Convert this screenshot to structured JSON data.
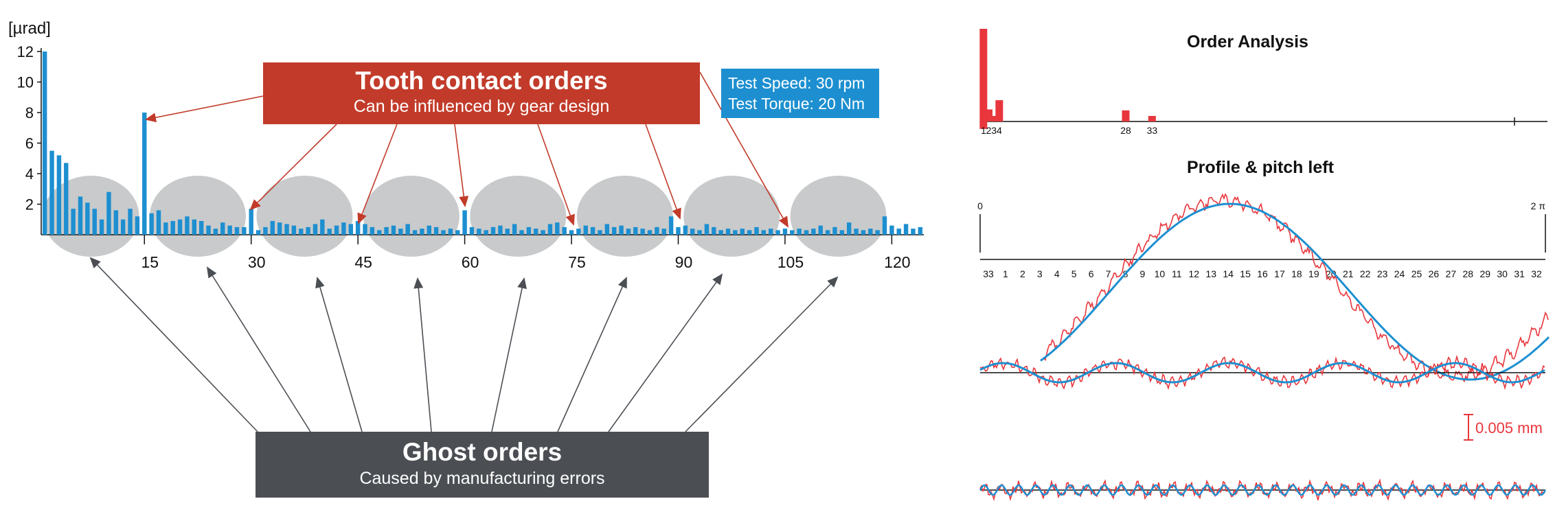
{
  "left_chart": {
    "chart_data": {
      "type": "bar",
      "ylabel": "[µrad]",
      "ylim": [
        0,
        12
      ],
      "yticks": [
        2,
        4,
        6,
        8,
        10,
        12
      ],
      "xticks": [
        15,
        30,
        45,
        60,
        75,
        90,
        105,
        120
      ],
      "x_range": [
        0,
        124
      ],
      "highlight_orders": [
        1,
        15,
        30,
        45,
        60,
        75,
        90,
        105
      ],
      "values": [
        12.0,
        5.5,
        5.2,
        4.7,
        1.7,
        2.5,
        2.1,
        1.7,
        1.0,
        2.8,
        1.6,
        1.0,
        1.7,
        1.2,
        8.0,
        1.4,
        1.6,
        0.8,
        0.9,
        1.0,
        1.2,
        1.0,
        0.9,
        0.6,
        0.4,
        0.8,
        0.6,
        0.5,
        0.5,
        1.7,
        0.3,
        0.5,
        0.9,
        0.8,
        0.7,
        0.6,
        0.4,
        0.5,
        0.7,
        1.0,
        0.4,
        0.6,
        0.8,
        0.7,
        0.9,
        0.7,
        0.5,
        0.3,
        0.5,
        0.6,
        0.4,
        0.7,
        0.3,
        0.4,
        0.6,
        0.5,
        0.3,
        0.4,
        0.3,
        1.6,
        0.5,
        0.4,
        0.3,
        0.5,
        0.6,
        0.4,
        0.7,
        0.3,
        0.5,
        0.4,
        0.3,
        0.7,
        0.8,
        0.5,
        0.3,
        0.4,
        0.6,
        0.5,
        0.3,
        0.7,
        0.5,
        0.6,
        0.4,
        0.5,
        0.4,
        0.3,
        0.5,
        0.4,
        1.2,
        0.5,
        0.6,
        0.4,
        0.3,
        0.7,
        0.5,
        0.3,
        0.4,
        0.3,
        0.4,
        0.3,
        0.5,
        0.3,
        0.4,
        0.3,
        0.4,
        0.3,
        0.4,
        0.3,
        0.4,
        0.6,
        0.3,
        0.5,
        0.3,
        0.8,
        0.4,
        0.3,
        0.4,
        0.3,
        1.2,
        0.6,
        0.4,
        0.7,
        0.4,
        0.5
      ]
    },
    "callouts": {
      "tooth": {
        "title": "Tooth contact orders",
        "subtitle": "Can be influenced by gear design"
      },
      "ghost": {
        "title": "Ghost orders",
        "subtitle": "Caused by manufacturing errors"
      },
      "test": {
        "speed": "Test Speed: 30 rpm",
        "torque": "Test Torque: 20 Nm"
      }
    }
  },
  "order_analysis": {
    "title": "Order Analysis",
    "chart_data": {
      "type": "bar",
      "title": "Order Analysis",
      "x_range": [
        0,
        100
      ],
      "tick_labels": [
        {
          "order": 1,
          "label": "1"
        },
        {
          "order": 2,
          "label": "2"
        },
        {
          "order": 3,
          "label": "3"
        },
        {
          "order": 4,
          "label": "4"
        },
        {
          "order": 28,
          "label": "28"
        },
        {
          "order": 33,
          "label": "33"
        }
      ],
      "bars": [
        {
          "order": 1,
          "value": 100,
          "neg": 8
        },
        {
          "order": 2,
          "value": 13
        },
        {
          "order": 3,
          "value": 6
        },
        {
          "order": 4,
          "value": 23
        },
        {
          "order": 28,
          "value": 12
        },
        {
          "order": 33,
          "value": 6
        }
      ]
    }
  },
  "profile": {
    "title": "Profile & pitch left",
    "start_label": "0",
    "end_label": "2 π",
    "teeth": [
      "33",
      "1",
      "2",
      "3",
      "4",
      "5",
      "6",
      "7",
      "8",
      "9",
      "10",
      "11",
      "12",
      "13",
      "14",
      "15",
      "16",
      "17",
      "18",
      "19",
      "20",
      "21",
      "22",
      "23",
      "24",
      "25",
      "26",
      "27",
      "28",
      "29",
      "30",
      "31",
      "32"
    ],
    "scale_label": "0.005 mm",
    "colors": {
      "measured": "#e8363c",
      "fit": "#1d8fd0"
    }
  }
}
